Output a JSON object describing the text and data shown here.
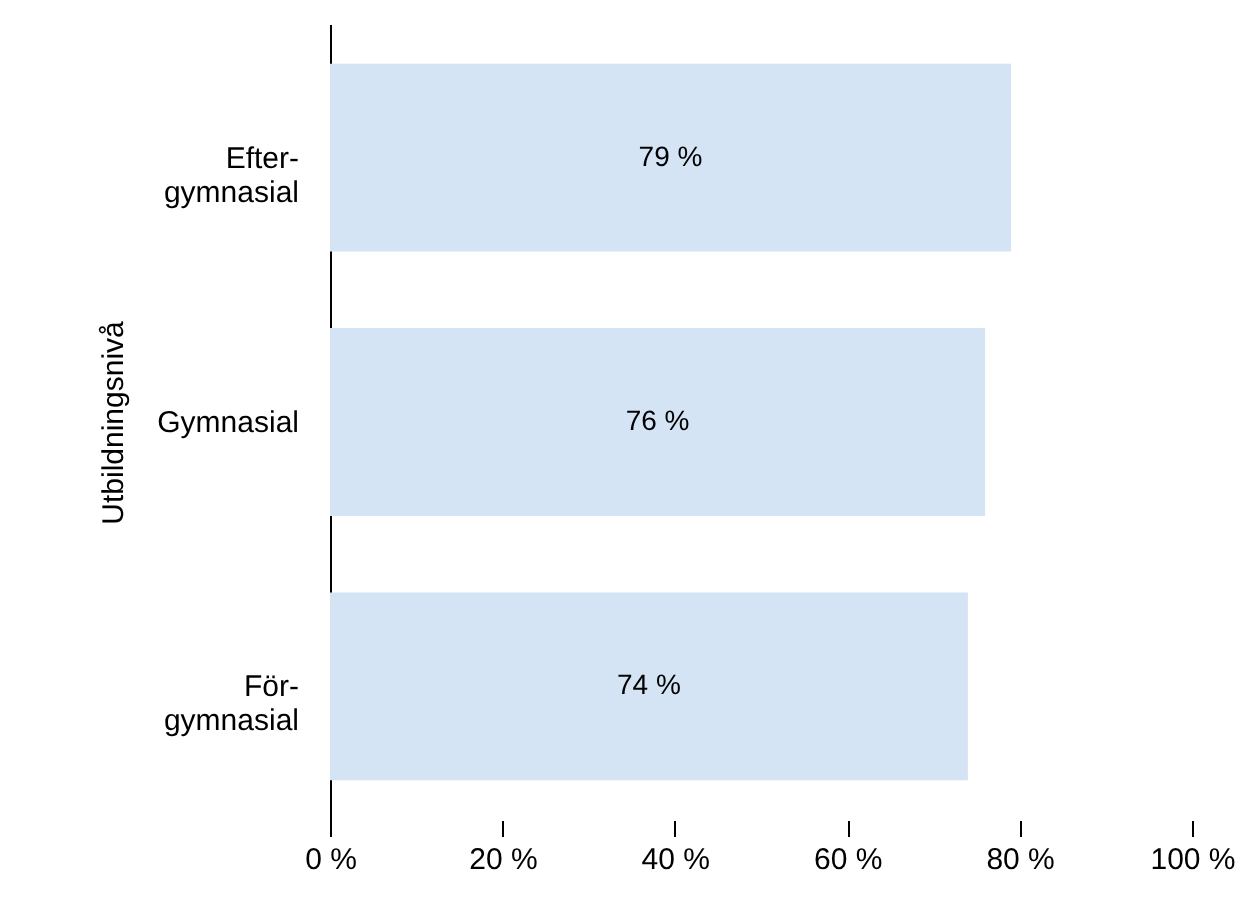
{
  "chart_data": {
    "type": "bar",
    "orientation": "horizontal",
    "ylabel": "Utbildningsnivå",
    "categories": [
      "Efter-gymnasial",
      "Gymnasial",
      "För-gymnasial"
    ],
    "values": [
      79,
      76,
      74
    ],
    "value_labels": [
      "79 %",
      "76 %",
      "74 %"
    ],
    "color": "#d4e4f4",
    "xlim": [
      0,
      100
    ],
    "xticks": [
      {
        "value": 0,
        "label": "0 %"
      },
      {
        "value": 20,
        "label": "20 %"
      },
      {
        "value": 40,
        "label": "40 %"
      },
      {
        "value": 60,
        "label": "60 %"
      },
      {
        "value": 80,
        "label": "80 %"
      },
      {
        "value": 100,
        "label": "100 %"
      }
    ],
    "grid": false
  }
}
